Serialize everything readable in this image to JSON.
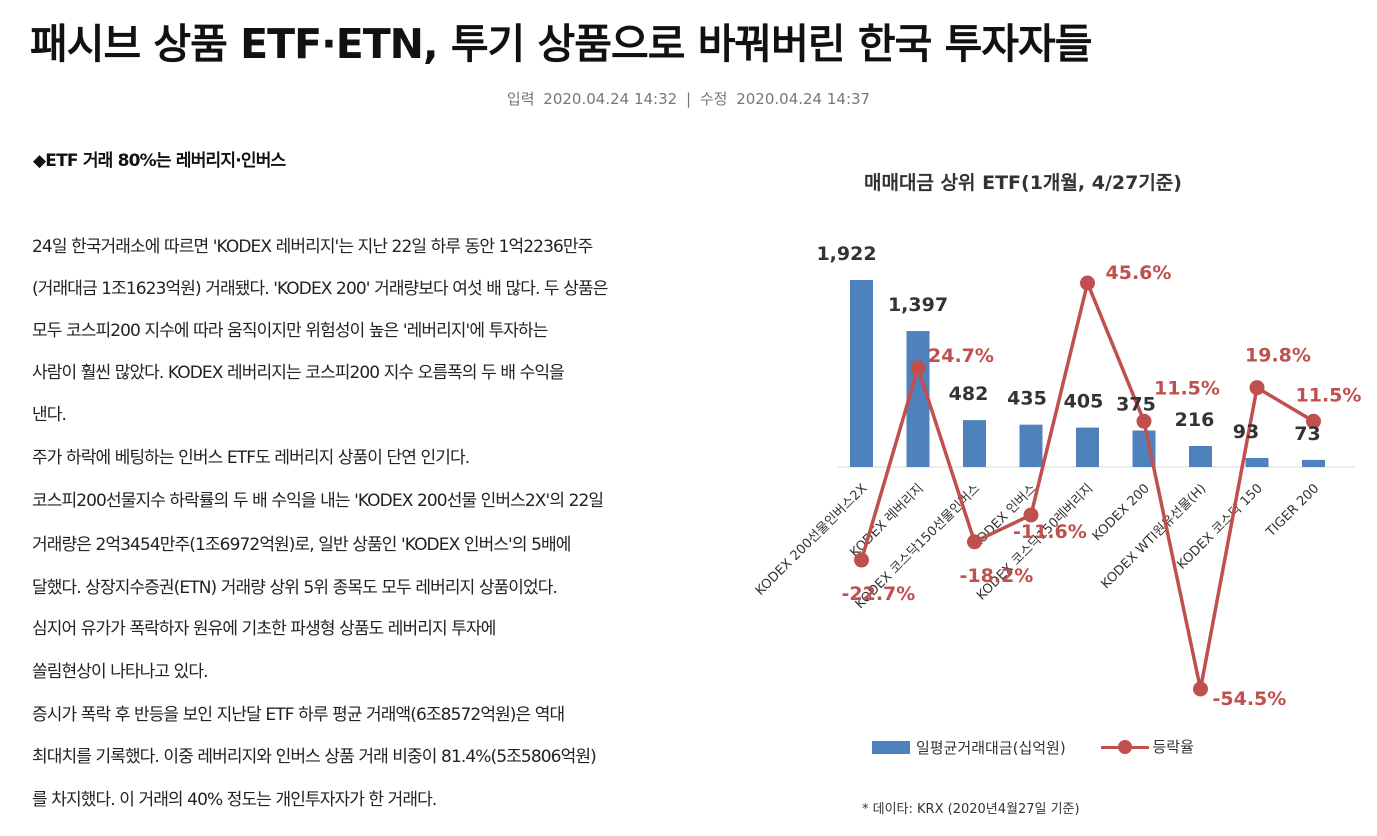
{
  "article": {
    "headline": "패시브 상품 ETF·ETN, 투기 상품으로 바꿔버린 한국 투자자들",
    "input_label": "입력",
    "input_date": "2020.04.24 14:32",
    "separator": "|",
    "edit_label": "수정",
    "edit_date": "2020.04.24 14:37",
    "section_heading": "◆ETF 거래 80%는 레버리지·인버스",
    "lines": [
      "24일 한국거래소에 따르면 'KODEX 레버리지'는 지난 22일 하루 동안 1억2236만주",
      "(거래대금 1조1623억원) 거래됐다. 'KODEX 200' 거래량보다 여섯 배 많다. 두 상품은",
      "모두 코스피200 지수에 따라 움직이지만 위험성이 높은 '레버리지'에 투자하는",
      "사람이 훨씬 많았다. KODEX 레버리지는 코스피200 지수 오름폭의 두 배 수익을",
      "낸다.",
      "주가 하락에 베팅하는 인버스 ETF도 레버리지 상품이 단연 인기다.",
      "코스피200선물지수 하락률의 두 배 수익을 내는 'KODEX 200선물 인버스2X'의 22일",
      "거래량은 2억3454만주(1조6972억원)로, 일반 상품인 'KODEX 인버스'의 5배에",
      "달했다. 상장지수증권(ETN) 거래량 상위 5위 종목도 모두 레버리지 상품이었다.",
      "심지어 유가가 폭락하자 원유에 기초한 파생형 상품도 레버리지 투자에",
      "쏠림현상이 나타나고 있다.",
      "증시가 폭락 후 반등을 보인 지난달 ETF 하루 평균 거래액(6조8572억원)은 역대",
      "최대치를 기록했다. 이중 레버리지와 인버스 상품 거래 비중이 81.4%(5조5806억원)",
      "를 차지했다. 이 거래의 40% 정도는 개인투자자가 한 거래다."
    ]
  },
  "chart_data": {
    "type": "bar",
    "title": "매매대금 상위 ETF(1개월, 4/27기준)",
    "categories": [
      "KODEX 200선물인버스2X",
      "KODEX 레버리지",
      "KODEX 코스닥150선물인버스",
      "KODEX 인버스",
      "KODEX 코스닥150레버리지",
      "KODEX 200",
      "KODEX WTI원유선물(H)",
      "KODEX 코스닥 150",
      "TIGER 200"
    ],
    "series": [
      {
        "name": "일평균거래대금(십억원)",
        "type": "bar",
        "values": [
          1922,
          1397,
          482,
          435,
          405,
          375,
          216,
          93,
          73
        ],
        "labels": [
          "1,922",
          "1,397",
          "482",
          "435",
          "405",
          "375",
          "216",
          "93",
          "73"
        ],
        "color": "#4f81bd"
      },
      {
        "name": "등락율",
        "type": "line",
        "values": [
          -22.7,
          24.7,
          -18.2,
          -11.6,
          45.6,
          11.5,
          -54.5,
          19.8,
          11.5
        ],
        "labels": [
          "-22.7%",
          "24.7%",
          "-18.2%",
          "-11.6%",
          "45.6%",
          "11.5%",
          "-54.5%",
          "19.8%",
          "11.5%"
        ],
        "color": "#c0504d"
      }
    ],
    "bar_ylim": [
      0,
      2200
    ],
    "line_ylim": [
      -75,
      50
    ],
    "legend_position": "bottom",
    "source": "* 데이타: KRX (2020년4월27일 기준)"
  }
}
